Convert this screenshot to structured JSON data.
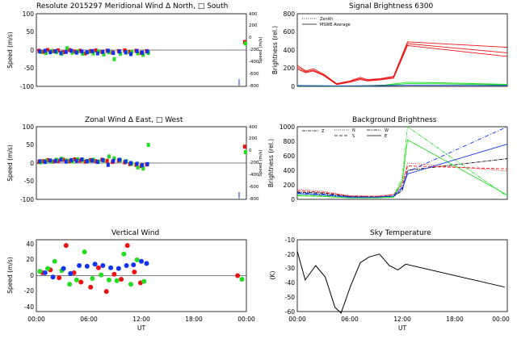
{
  "colors": {
    "red": "#ee1111",
    "green": "#22dd22",
    "blue": "#1133ee",
    "black": "#000000"
  },
  "panels": {
    "meridional": {
      "title": "Resolute  2015297    Meridional Wind   Δ North, □ South",
      "ylabel": "Speed (m/s)",
      "yticks": [
        "100",
        "50",
        "0",
        "-50",
        "-100"
      ],
      "right_ticks": [
        "400",
        "200",
        "0",
        "-200",
        "-400",
        "-600",
        "-800"
      ],
      "right_label": "Speed (m/s)"
    },
    "signal": {
      "title": "Signal Brightness       6300",
      "ylabel": "Brightness (rel.)",
      "yticks": [
        "800",
        "600",
        "400",
        "200",
        "0"
      ],
      "legend": [
        "Zenith",
        "MSWE Average"
      ]
    },
    "zonal": {
      "title": "Zonal Wind     Δ East, □ West",
      "ylabel": "Speed (m/s)",
      "yticks": [
        "100",
        "50",
        "0",
        "-50",
        "-100"
      ],
      "right_ticks": [
        "400",
        "200",
        "0",
        "-200",
        "-400",
        "-600",
        "-800"
      ],
      "right_label": "Speed (m/s)"
    },
    "background": {
      "title": "Background Brightness",
      "ylabel": "Brightness (rel.)",
      "yticks": [
        "1000",
        "800",
        "600",
        "400",
        "200",
        "0"
      ],
      "legend": [
        "Z",
        "N",
        "S",
        "W",
        "E"
      ]
    },
    "vertical": {
      "title": "Vertical Wind",
      "ylabel": "Speed (m/s)",
      "yticks": [
        "40",
        "20",
        "0",
        "-20",
        "-40"
      ],
      "xticks": [
        "00:00",
        "06:00",
        "12:00",
        "18:00",
        "00:00"
      ],
      "xlabel": "UT"
    },
    "sky": {
      "title": "Sky Temperature",
      "ylabel": "(K)",
      "yticks": [
        "-10",
        "-20",
        "-30",
        "-40",
        "-50",
        "-60"
      ],
      "xticks": [
        "00:00",
        "06:00",
        "12:00",
        "18:00",
        "00:00"
      ],
      "xlabel": "UT"
    }
  },
  "chart_data": [
    {
      "id": "meridional",
      "type": "scatter",
      "xlim": [
        0,
        24
      ],
      "ylim": [
        -100,
        100
      ],
      "series": [
        {
          "name": "red",
          "color": "red",
          "x": [
            0.3,
            0.8,
            1.3,
            1.9,
            2.5,
            3.1,
            3.8,
            4.4,
            5.0,
            5.6,
            6.2,
            6.8,
            7.5,
            8.1,
            8.7,
            9.4,
            10.1,
            10.7,
            11.4,
            12.0,
            12.6,
            23.8
          ],
          "y": [
            -2,
            -5,
            0,
            -3,
            -1,
            -6,
            0,
            -4,
            -2,
            -9,
            -3,
            -1,
            -5,
            -2,
            -7,
            -3,
            -1,
            -5,
            -2,
            -8,
            -3,
            22
          ]
        },
        {
          "name": "green",
          "color": "green",
          "x": [
            0.5,
            1.1,
            1.7,
            2.3,
            2.9,
            3.5,
            4.1,
            4.7,
            5.3,
            5.9,
            6.5,
            7.1,
            7.7,
            8.3,
            8.9,
            9.6,
            10.3,
            10.9,
            11.6,
            12.2,
            12.8,
            23.9
          ],
          "y": [
            -5,
            -8,
            -3,
            -6,
            -10,
            5,
            -7,
            -4,
            -10,
            -6,
            -9,
            -4,
            -12,
            -6,
            -25,
            -10,
            -7,
            -5,
            -9,
            -13,
            -8,
            18
          ]
        },
        {
          "name": "blue",
          "color": "blue",
          "x": [
            0.4,
            1.0,
            1.6,
            2.2,
            2.8,
            3.4,
            4.0,
            4.6,
            5.2,
            5.8,
            6.4,
            7.0,
            7.6,
            8.2,
            8.8,
            9.5,
            10.2,
            10.8,
            11.5,
            12.1,
            12.7
          ],
          "y": [
            -4,
            -2,
            -6,
            -3,
            -8,
            -5,
            -2,
            -7,
            -4,
            -6,
            -3,
            -9,
            -5,
            -2,
            -8,
            -4,
            -6,
            -11,
            -3,
            -7,
            -4
          ]
        }
      ]
    },
    {
      "id": "signal",
      "type": "line",
      "xlim": [
        0,
        24
      ],
      "ylim": [
        0,
        800
      ],
      "series": [
        {
          "name": "red1",
          "color": "red",
          "x": [
            0,
            1,
            1.8,
            3,
            4.5,
            6,
            7.2,
            8,
            9.5,
            11,
            12.6,
            24
          ],
          "y": [
            230,
            170,
            195,
            135,
            30,
            60,
            100,
            75,
            85,
            110,
            490,
            430
          ]
        },
        {
          "name": "red2",
          "color": "red",
          "x": [
            0,
            1,
            1.8,
            3,
            4.5,
            6,
            7.2,
            8,
            9.5,
            11,
            12.6,
            24
          ],
          "y": [
            210,
            160,
            180,
            125,
            25,
            55,
            85,
            65,
            80,
            100,
            470,
            370
          ]
        },
        {
          "name": "red3",
          "color": "red",
          "x": [
            0,
            1,
            1.8,
            3,
            4.5,
            6,
            7.2,
            8,
            9.5,
            11,
            12.6,
            24
          ],
          "y": [
            190,
            150,
            170,
            120,
            20,
            45,
            75,
            60,
            70,
            90,
            450,
            330
          ]
        },
        {
          "name": "green1",
          "color": "green",
          "x": [
            0,
            2,
            4,
            6,
            8,
            10,
            12.6,
            16,
            24
          ],
          "y": [
            10,
            8,
            5,
            5,
            8,
            15,
            45,
            40,
            22
          ]
        },
        {
          "name": "green2",
          "color": "green",
          "x": [
            0,
            2,
            4,
            6,
            8,
            10,
            12.6,
            16,
            24
          ],
          "y": [
            6,
            5,
            3,
            3,
            5,
            10,
            30,
            28,
            15
          ]
        },
        {
          "name": "blue1",
          "color": "blue",
          "x": [
            0,
            6,
            12.6,
            24
          ],
          "y": [
            8,
            6,
            12,
            10
          ]
        }
      ]
    },
    {
      "id": "zonal",
      "type": "scatter",
      "xlim": [
        0,
        24
      ],
      "ylim": [
        -100,
        100
      ],
      "series": [
        {
          "name": "red",
          "color": "red",
          "x": [
            0.3,
            0.8,
            1.3,
            1.9,
            2.5,
            3.1,
            3.8,
            4.4,
            5.0,
            5.6,
            6.2,
            6.8,
            7.5,
            8.1,
            8.7,
            9.4,
            10.1,
            10.7,
            11.4,
            12.0,
            12.6,
            23.8
          ],
          "y": [
            3,
            5,
            8,
            4,
            6,
            9,
            5,
            10,
            7,
            4,
            8,
            5,
            9,
            6,
            3,
            7,
            2,
            -3,
            -5,
            -8,
            -4,
            45
          ]
        },
        {
          "name": "green",
          "color": "green",
          "x": [
            0.5,
            1.1,
            1.7,
            2.3,
            2.9,
            3.5,
            4.1,
            4.7,
            5.3,
            5.9,
            6.5,
            7.1,
            7.7,
            8.3,
            8.9,
            9.6,
            10.3,
            10.9,
            11.6,
            12.2,
            12.8,
            23.9
          ],
          "y": [
            2,
            6,
            4,
            9,
            12,
            7,
            5,
            10,
            8,
            6,
            9,
            4,
            7,
            18,
            13,
            8,
            5,
            -2,
            -12,
            -15,
            50,
            30
          ]
        },
        {
          "name": "blue",
          "color": "blue",
          "x": [
            0.4,
            1.0,
            1.6,
            2.2,
            2.8,
            3.4,
            4.0,
            4.6,
            5.2,
            5.8,
            6.4,
            7.0,
            7.6,
            8.2,
            8.8,
            9.5,
            10.2,
            10.8,
            11.5,
            12.1,
            12.7
          ],
          "y": [
            5,
            3,
            7,
            6,
            9,
            4,
            8,
            6,
            10,
            5,
            7,
            3,
            8,
            -5,
            6,
            9,
            4,
            0,
            -2,
            -6,
            -3
          ]
        }
      ]
    },
    {
      "id": "background",
      "type": "line",
      "xlim": [
        0,
        24
      ],
      "ylim": [
        0,
        1000
      ],
      "series": [
        {
          "name": "Z",
          "color": "black",
          "x": [
            0,
            3,
            6,
            9,
            11,
            12,
            12.6,
            24
          ],
          "y": [
            100,
            85,
            40,
            35,
            40,
            120,
            400,
            560
          ]
        },
        {
          "name": "N",
          "color": "red",
          "x": [
            0,
            3,
            6,
            9,
            11,
            12,
            12.6,
            24
          ],
          "y": [
            140,
            110,
            50,
            45,
            70,
            230,
            500,
            390
          ]
        },
        {
          "name": "S",
          "color": "red",
          "x": [
            0,
            3,
            6,
            9,
            11,
            12,
            12.6,
            24
          ],
          "y": [
            120,
            95,
            45,
            40,
            60,
            200,
            460,
            420
          ]
        },
        {
          "name": "W",
          "color": "green",
          "x": [
            0,
            3,
            6,
            9,
            11,
            12,
            12.6,
            24
          ],
          "y": [
            60,
            50,
            25,
            25,
            40,
            300,
            1000,
            40
          ]
        },
        {
          "name": "W2",
          "color": "green",
          "x": [
            0,
            3,
            6,
            9,
            11,
            12,
            12.6,
            24
          ],
          "y": [
            50,
            40,
            20,
            20,
            30,
            250,
            820,
            60
          ]
        },
        {
          "name": "E",
          "color": "blue",
          "x": [
            0,
            3,
            6,
            9,
            11,
            12,
            12.6,
            24
          ],
          "y": [
            80,
            60,
            30,
            30,
            45,
            150,
            350,
            760
          ]
        },
        {
          "name": "E2",
          "color": "blue",
          "x": [
            0,
            3,
            6,
            9,
            11,
            12,
            12.6,
            24
          ],
          "y": [
            90,
            70,
            35,
            32,
            50,
            170,
            380,
            1000
          ]
        }
      ]
    },
    {
      "id": "vertical",
      "type": "scatter",
      "xlim": [
        0,
        24
      ],
      "ylim": [
        -50,
        50
      ],
      "series": [
        {
          "name": "red",
          "color": "red",
          "x": [
            0.7,
            1.6,
            2.6,
            3.4,
            4.3,
            5.1,
            6.2,
            7.1,
            8.0,
            8.9,
            9.7,
            10.4,
            11.2,
            11.9,
            23.0
          ],
          "y": [
            4,
            8,
            -3,
            42,
            4,
            -9,
            -16,
            11,
            -22,
            2,
            -5,
            42,
            5,
            -10,
            0
          ]
        },
        {
          "name": "green",
          "color": "green",
          "x": [
            0.4,
            1.3,
            2.1,
            2.9,
            3.8,
            4.6,
            5.5,
            6.4,
            7.4,
            8.3,
            9.2,
            10.0,
            10.8,
            11.5,
            12.3,
            23.5
          ],
          "y": [
            6,
            10,
            20,
            7,
            -12,
            -6,
            33,
            -4,
            1,
            -6,
            -7,
            30,
            -12,
            22,
            -8,
            -5
          ]
        },
        {
          "name": "blue",
          "color": "blue",
          "x": [
            1.0,
            1.9,
            3.1,
            3.9,
            4.9,
            5.8,
            6.7,
            7.6,
            8.5,
            9.4,
            10.3,
            11.1,
            12.0,
            12.6
          ],
          "y": [
            4,
            -2,
            10,
            3,
            14,
            13,
            16,
            14,
            11,
            10,
            14,
            15,
            20,
            17
          ]
        }
      ]
    },
    {
      "id": "sky",
      "type": "line",
      "xlim": [
        0,
        24
      ],
      "ylim": [
        -60,
        -10
      ],
      "series": [
        {
          "name": "sky_temp",
          "color": "black",
          "x": [
            0,
            0.9,
            2.1,
            3.2,
            4.3,
            5.0,
            6.1,
            7.2,
            8.2,
            9.4,
            10.5,
            11.5,
            12.4,
            23.7
          ],
          "y": [
            -18,
            -38,
            -28,
            -36,
            -57,
            -61,
            -42,
            -26,
            -22,
            -20,
            -28,
            -31,
            -27,
            -43
          ]
        }
      ]
    }
  ]
}
